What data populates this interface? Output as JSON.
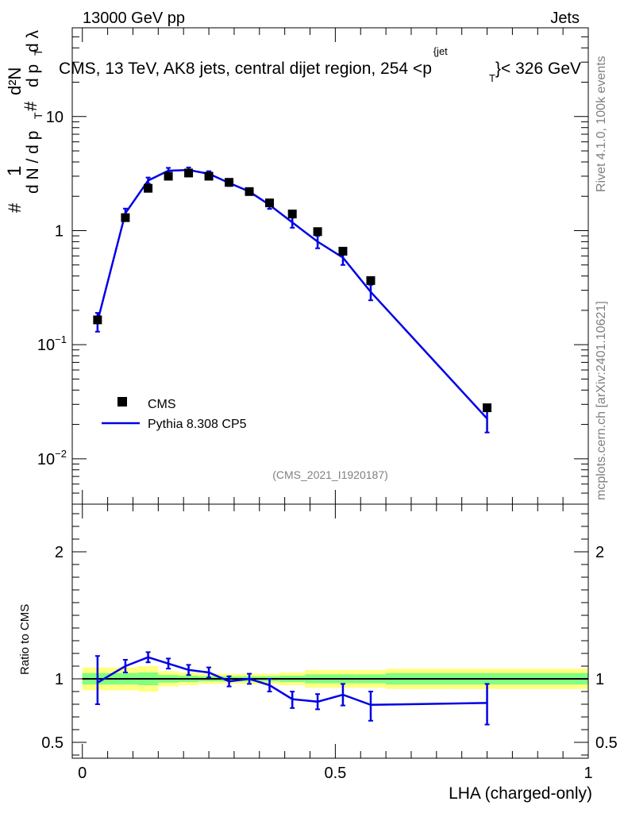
{
  "header": {
    "energy_label": "13000 GeV pp",
    "group_label": "Jets"
  },
  "side_labels": {
    "rivet": "Rivet 4.1.0,  100k events",
    "mcplots": "mcplots.cern.ch [arXiv:2401.10621]"
  },
  "chart_data": [
    {
      "type": "line",
      "role": "main",
      "title": "CMS, 13 TeV, AK8 jets, central dijet region, 254 <p_T^{jet}< 326 GeV",
      "title_parts": {
        "prefix": "CMS, 13 TeV, AK8 jets, central dijet region, 254 <p",
        "sup": "{jet",
        "sub": "T",
        "suffix": "}< 326 GeV"
      },
      "ylabel": "1/(dN/dp_T) d²N/(dp_T dλ)",
      "ylabel_parts": {
        "hash": "#",
        "one": "1",
        "dN": "d N / d p",
        "T": "T",
        "d2N": "d²N",
        "dp": "d p",
        "dl": "d λ"
      },
      "yscale": "log",
      "ylim": [
        0.004,
        60
      ],
      "xlim": [
        -0.02,
        1.0
      ],
      "yticks": [
        {
          "value": 0.01,
          "base": "10",
          "exp": "−2"
        },
        {
          "value": 0.1,
          "base": "10",
          "exp": "−1"
        },
        {
          "value": 1,
          "base": "1",
          "exp": ""
        },
        {
          "value": 10,
          "base": "10",
          "exp": ""
        }
      ],
      "watermark": "(CMS_2021_I1920187)",
      "legend": [
        {
          "label": "CMS",
          "marker": "square",
          "color": "#000000"
        },
        {
          "label": "Pythia 8.308 CP5",
          "marker": "line",
          "color": "#0000e6"
        }
      ],
      "series": [
        {
          "name": "CMS",
          "color": "#000000",
          "x": [
            0.03,
            0.085,
            0.13,
            0.17,
            0.21,
            0.25,
            0.29,
            0.33,
            0.37,
            0.415,
            0.465,
            0.515,
            0.57,
            0.8
          ],
          "y": [
            0.165,
            1.3,
            2.35,
            3.0,
            3.2,
            3.0,
            2.65,
            2.2,
            1.75,
            1.4,
            0.98,
            0.66,
            0.365,
            0.028
          ]
        },
        {
          "name": "Pythia 8.308 CP5",
          "color": "#0000e6",
          "x": [
            0.03,
            0.085,
            0.13,
            0.17,
            0.21,
            0.25,
            0.29,
            0.33,
            0.37,
            0.415,
            0.465,
            0.515,
            0.57,
            0.8
          ],
          "y": [
            0.16,
            1.42,
            2.75,
            3.35,
            3.4,
            3.15,
            2.62,
            2.2,
            1.68,
            1.18,
            0.8,
            0.58,
            0.29,
            0.0225
          ],
          "err_lo": [
            0.13,
            1.28,
            2.58,
            3.15,
            3.22,
            2.98,
            2.46,
            2.06,
            1.55,
            1.06,
            0.7,
            0.5,
            0.245,
            0.017
          ],
          "err_hi": [
            0.19,
            1.56,
            2.92,
            3.55,
            3.58,
            3.32,
            2.78,
            2.34,
            1.81,
            1.3,
            0.9,
            0.66,
            0.335,
            0.028
          ]
        }
      ]
    },
    {
      "type": "line",
      "role": "ratio",
      "ylabel": "Ratio to CMS",
      "xlabel": "LHA (charged-only)",
      "ylim": [
        0.375,
        2.375
      ],
      "xlim": [
        -0.02,
        1.0
      ],
      "yticks": [
        0.5,
        1,
        2
      ],
      "ytick_labels": [
        "0.5",
        "1",
        "2"
      ],
      "xticks": [
        0,
        0.5,
        1
      ],
      "xtick_labels": [
        "0",
        "0.5",
        "1"
      ],
      "reference": 1.0,
      "bands": {
        "edges": [
          0.0,
          0.05,
          0.11,
          0.15,
          0.19,
          0.23,
          0.27,
          0.31,
          0.35,
          0.39,
          0.44,
          0.49,
          0.54,
          0.6,
          1.0
        ],
        "stat_sys_half_width": [
          0.09,
          0.09,
          0.1,
          0.06,
          0.05,
          0.04,
          0.04,
          0.04,
          0.04,
          0.05,
          0.07,
          0.07,
          0.07,
          0.08
        ],
        "stat_half_width": [
          0.045,
          0.045,
          0.05,
          0.03,
          0.025,
          0.02,
          0.02,
          0.02,
          0.02,
          0.025,
          0.035,
          0.035,
          0.035,
          0.045
        ],
        "outer_color": "#ffff80",
        "inner_color": "#80ff80"
      },
      "series": [
        {
          "name": "Pythia 8.308 CP5",
          "color": "#0000e6",
          "x": [
            0.03,
            0.085,
            0.13,
            0.17,
            0.21,
            0.25,
            0.29,
            0.33,
            0.37,
            0.415,
            0.465,
            0.515,
            0.57,
            0.8
          ],
          "y": [
            0.97,
            1.1,
            1.17,
            1.12,
            1.07,
            1.05,
            0.98,
            1.0,
            0.95,
            0.84,
            0.82,
            0.875,
            0.795,
            0.81
          ],
          "err_lo": [
            0.8,
            1.05,
            1.13,
            1.08,
            1.03,
            1.01,
            0.94,
            0.96,
            0.9,
            0.77,
            0.76,
            0.79,
            0.67,
            0.64
          ],
          "err_hi": [
            1.18,
            1.15,
            1.21,
            1.16,
            1.11,
            1.09,
            1.02,
            1.04,
            1.0,
            0.9,
            0.88,
            0.96,
            0.9,
            0.96
          ]
        }
      ]
    }
  ]
}
